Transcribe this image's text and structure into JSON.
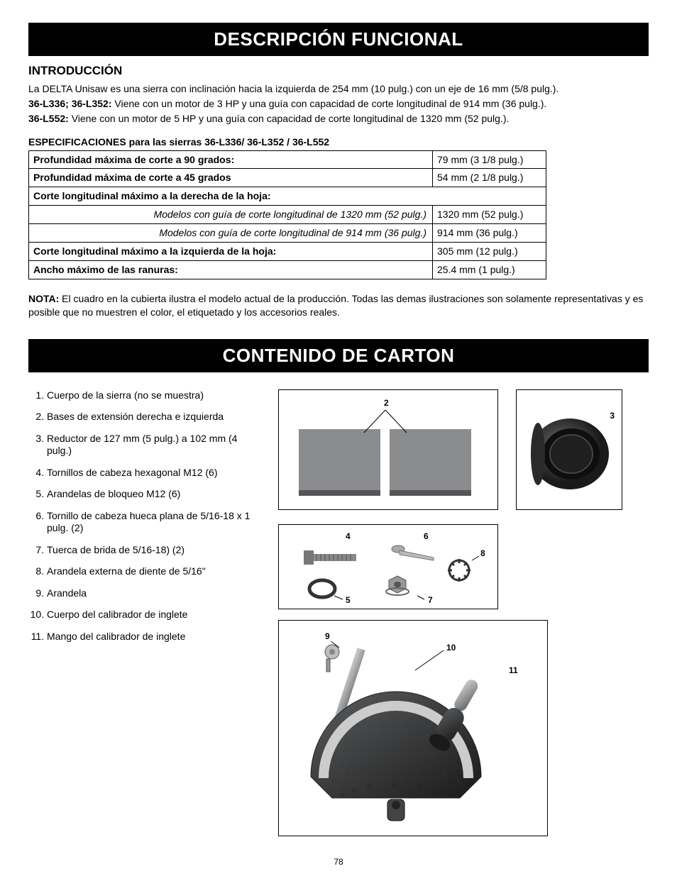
{
  "section1": {
    "banner": "DESCRIPCIÓN FUNCIONAL",
    "intro_head": "INTRODUCCIÓN",
    "intro_line1": "La DELTA Unisaw es una sierra con inclinación hacia la izquierda de 254 mm (10 pulg.) con un eje de 16 mm (5/8 pulg.).",
    "intro_l2_bold": "36-L336; 36-L352:",
    "intro_l2_rest": " Viene con un motor de 3 HP y una guía con capacidad de corte longitudinal de 914 mm (36 pulg.).",
    "intro_l3_bold": "36-L552:",
    "intro_l3_rest": " Viene con un motor de 5 HP y una guía con capacidad de corte longitudinal de 1320 mm (52 pulg.).",
    "spec_title": "ESPECIFICACIONES para las sierras 36-L336/ 36-L352 / 36-L552",
    "rows": [
      {
        "l": "Profundidad máxima de corte a 90 grados:",
        "v": "79 mm (3 1/8 pulg.)",
        "bold": true
      },
      {
        "l": "Profundidad máxima de corte a 45 grados",
        "v": "54 mm (2 1/8 pulg.)",
        "bold": true
      },
      {
        "l": "Corte longitudinal máximo a la derecha de la hoja:",
        "span": true,
        "bold": true
      },
      {
        "l": "Modelos con guía de corte longitudinal de 1320 mm (52 pulg.)",
        "v": "1320 mm (52 pulg.)",
        "italic": true
      },
      {
        "l": "Modelos con guía de corte longitudinal de 914 mm (36 pulg.)",
        "v": "914 mm (36 pulg.)",
        "italic": true
      },
      {
        "l": "Corte longitudinal máximo a la izquierda de la hoja:",
        "v": "305 mm (12 pulg.)",
        "bold": true
      },
      {
        "l": "Ancho máximo de las ranuras:",
        "v": "25.4 mm (1 pulg.)",
        "bold": true
      }
    ],
    "note_bold": "NOTA:",
    "note_rest": " El cuadro en la cubierta ilustra el modelo actual de la producción. Todas las demas ilustraciones son solamente representativas y es posible que no muestren el color, el etiquetado y los accesorios reales."
  },
  "section2": {
    "banner": "CONTENIDO DE CARTON",
    "items": [
      "Cuerpo de la sierra (no se muestra)",
      "Bases de extensión derecha e izquierda",
      "Reductor de 127 mm (5 pulg.) a 102 mm (4 pulg.)",
      "Tornillos de cabeza hexagonal M12 (6)",
      "Arandelas de bloqueo M12 (6)",
      "Tornillo de cabeza hueca plana de 5/16-18 x 1 pulg. (2)",
      "Tuerca de brida de 5/16-18) (2)",
      "Arandela externa de diente de 5/16\"",
      "Arandela",
      "Cuerpo del calibrador de inglete",
      "Mango del calibrador de inglete"
    ],
    "callouts": [
      "2",
      "3",
      "4",
      "5",
      "6",
      "7",
      "8",
      "9",
      "10",
      "11"
    ]
  },
  "page_number": "78",
  "colors": {
    "panel_gray": "#8a8c8e",
    "dark_gray": "#555558",
    "metal": "#9ea0a2",
    "steel": "#b0b2b4"
  }
}
